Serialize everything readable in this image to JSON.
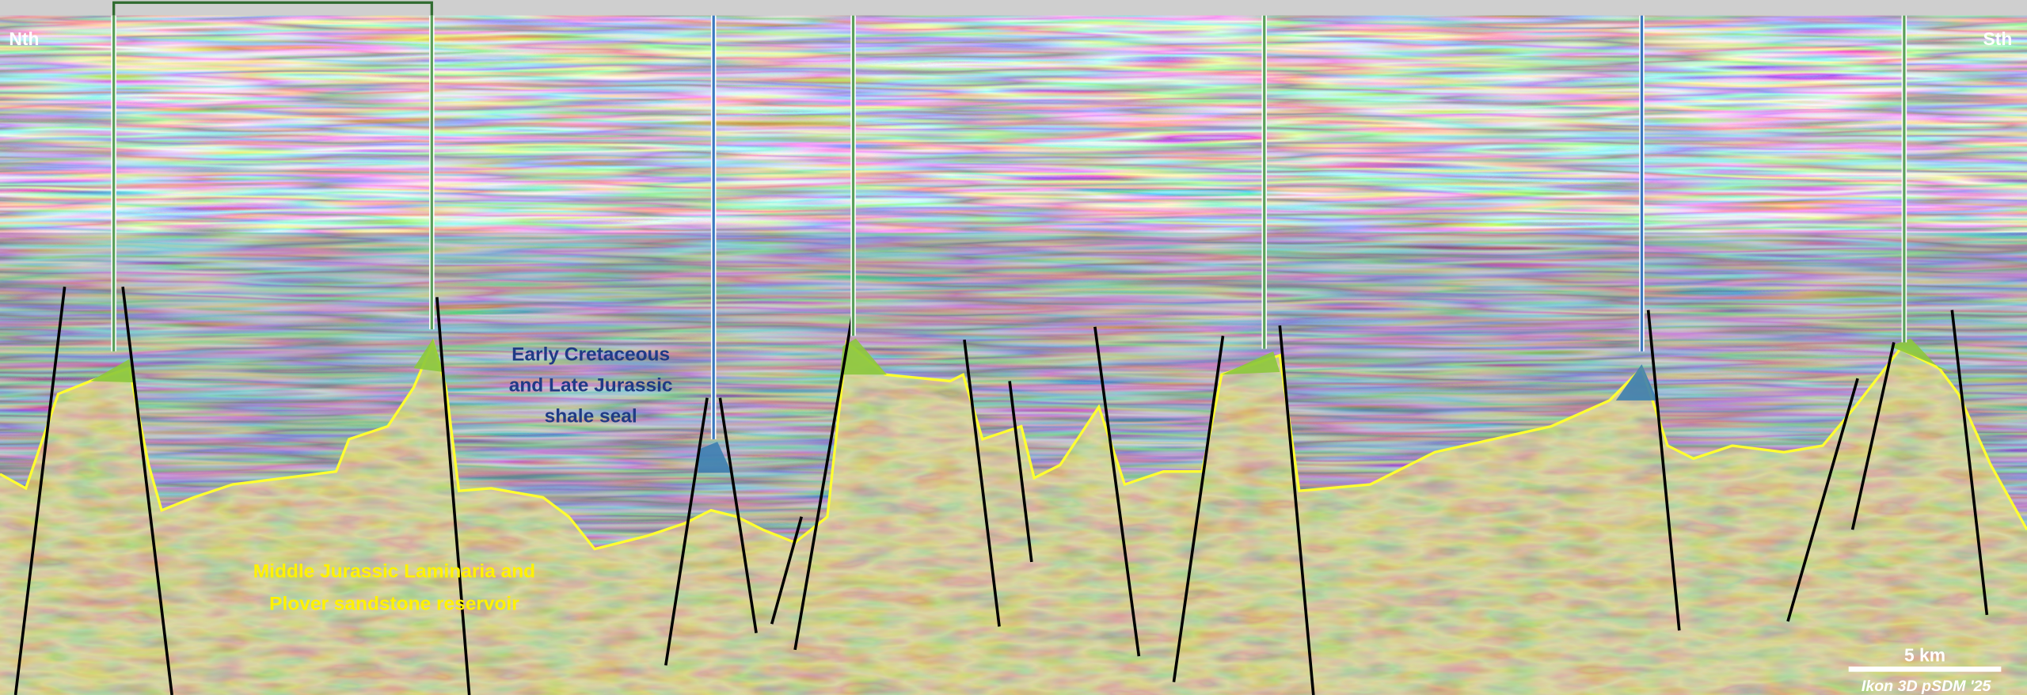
{
  "labels": {
    "north": "Nth",
    "south": "Sth",
    "seal": [
      "Early Cretaceous",
      "and Late Jurassic",
      "shale seal"
    ],
    "reservoir": [
      "Middle Jurassic Laminaria and",
      "Plover sandstone reservoir"
    ],
    "scale_bar": "5 km",
    "credit": "Ikon 3D pSDM '25"
  }
}
